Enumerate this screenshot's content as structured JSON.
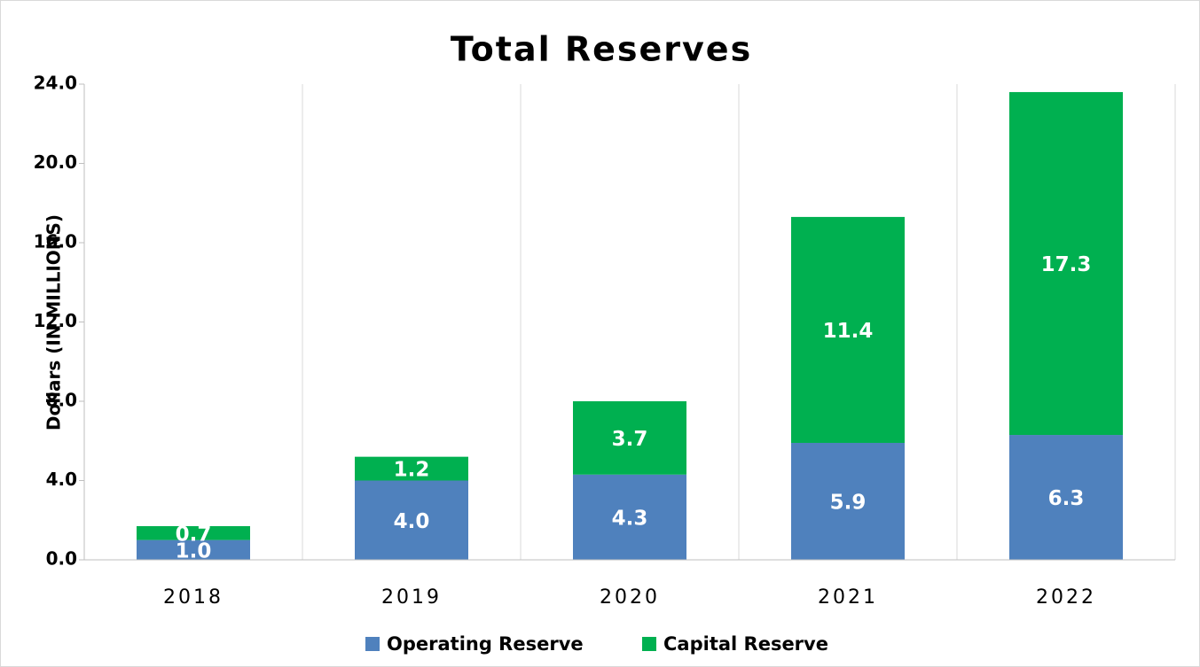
{
  "chart_data": {
    "type": "stacked_bar",
    "title": "Total Reserves",
    "y_label": "Dollars (IN MILLIONS)",
    "categories": [
      "2018",
      "2019",
      "2020",
      "2021",
      "2022"
    ],
    "series": [
      {
        "name": "Operating Reserve",
        "color": "#4f81bd",
        "values": [
          1.0,
          4.0,
          4.3,
          5.9,
          6.3
        ],
        "value_labels": [
          "1.0",
          "4.0",
          "4.3",
          "5.9",
          "6.3"
        ]
      },
      {
        "name": "Capital Reserve",
        "color": "#00b050",
        "values": [
          0.7,
          1.2,
          3.7,
          11.4,
          17.3
        ],
        "value_labels": [
          "0.7",
          "1.2",
          "3.7",
          "11.4",
          "17.3"
        ]
      }
    ],
    "ylim": [
      0,
      24
    ],
    "yticks": [
      {
        "value": 0,
        "label": "0.0"
      },
      {
        "value": 4,
        "label": "4.0"
      },
      {
        "value": 8,
        "label": "8.0"
      },
      {
        "value": 12,
        "label": "12.0"
      },
      {
        "value": 16,
        "label": "16.0"
      },
      {
        "value": 20,
        "label": "20.0"
      },
      {
        "value": 24,
        "label": "24.0"
      }
    ],
    "legend": "bottom"
  }
}
